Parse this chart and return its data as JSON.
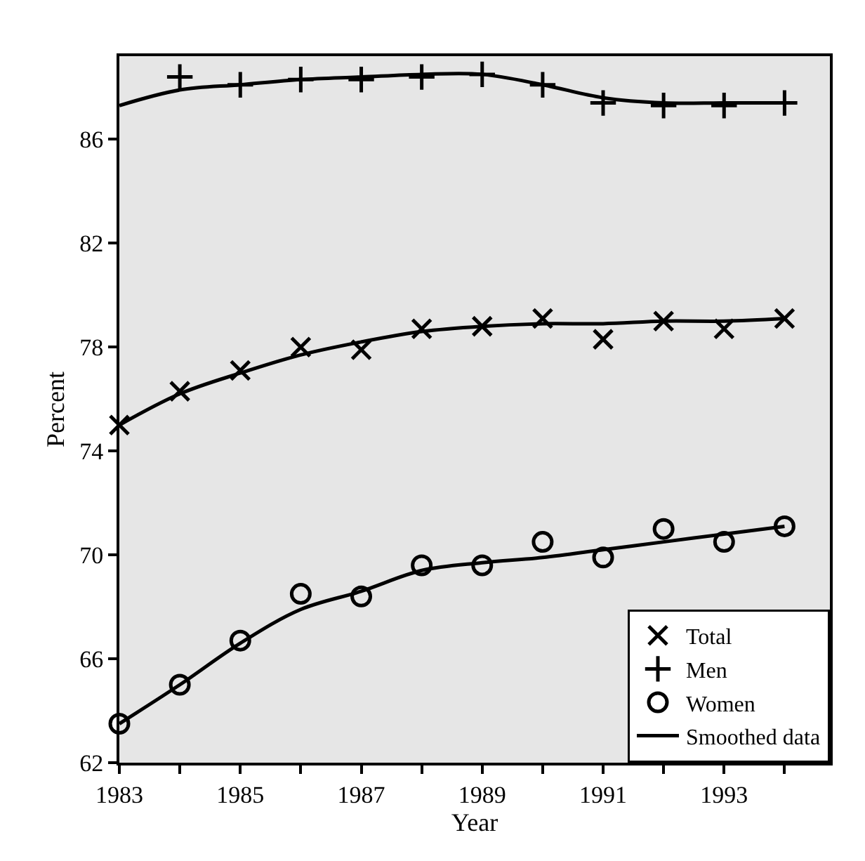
{
  "chart_data": {
    "type": "scatter",
    "xlabel": "Year",
    "ylabel": "Percent",
    "x": [
      1983,
      1984,
      1985,
      1986,
      1987,
      1988,
      1989,
      1990,
      1991,
      1992,
      1993,
      1994
    ],
    "series": [
      {
        "name": "Total",
        "color": "#000000",
        "marker": "cross",
        "values": [
          75.0,
          76.3,
          77.1,
          78.0,
          77.9,
          78.7,
          78.8,
          79.1,
          78.3,
          79.0,
          78.7,
          79.1
        ]
      },
      {
        "name": "Men",
        "color": "#000000",
        "marker": "plus",
        "x": [
          1984,
          1985,
          1986,
          1987,
          1988,
          1989,
          1990,
          1991,
          1992,
          1993,
          1994
        ],
        "values": [
          88.4,
          88.1,
          88.3,
          88.3,
          88.4,
          88.5,
          88.1,
          87.4,
          87.3,
          87.3,
          87.4
        ]
      },
      {
        "name": "Women",
        "color": "#000000",
        "marker": "circle",
        "values": [
          63.5,
          65.0,
          66.7,
          68.5,
          68.4,
          69.6,
          69.6,
          70.5,
          69.9,
          71.0,
          70.5,
          71.1
        ]
      },
      {
        "name": "Smoothed data",
        "type": "line",
        "color": "#000000",
        "marker": "none",
        "values": [
          75.0,
          76.2,
          77.0,
          77.7,
          78.2,
          78.6,
          78.8,
          78.9,
          78.9,
          79.0,
          79.0,
          79.1
        ]
      },
      {
        "type": "line",
        "color": "#000000",
        "marker": "none",
        "values": [
          87.3,
          87.9,
          88.1,
          88.3,
          88.4,
          88.5,
          88.5,
          88.1,
          87.6,
          87.4,
          87.4,
          87.4
        ]
      },
      {
        "type": "line",
        "color": "#000000",
        "marker": "none",
        "values": [
          63.5,
          65.0,
          66.6,
          67.9,
          68.6,
          69.4,
          69.7,
          69.9,
          70.2,
          70.5,
          70.8,
          71.1
        ]
      }
    ],
    "xlim": [
      1983,
      1994.75
    ],
    "xticks": [
      1983,
      {
        "value": 1984,
        "label": null
      },
      1985,
      {
        "value": 1986,
        "label": null
      },
      1987,
      {
        "value": 1988,
        "label": null
      },
      1989,
      {
        "value": 1990,
        "label": null
      },
      1991,
      {
        "value": 1992,
        "label": null
      },
      1993,
      {
        "value": 1994,
        "label": null
      }
    ],
    "ylim": [
      62,
      89.2
    ],
    "yticks": [
      62,
      66,
      70,
      74,
      78,
      82,
      86
    ],
    "grid": false,
    "legend": "bottom right"
  }
}
